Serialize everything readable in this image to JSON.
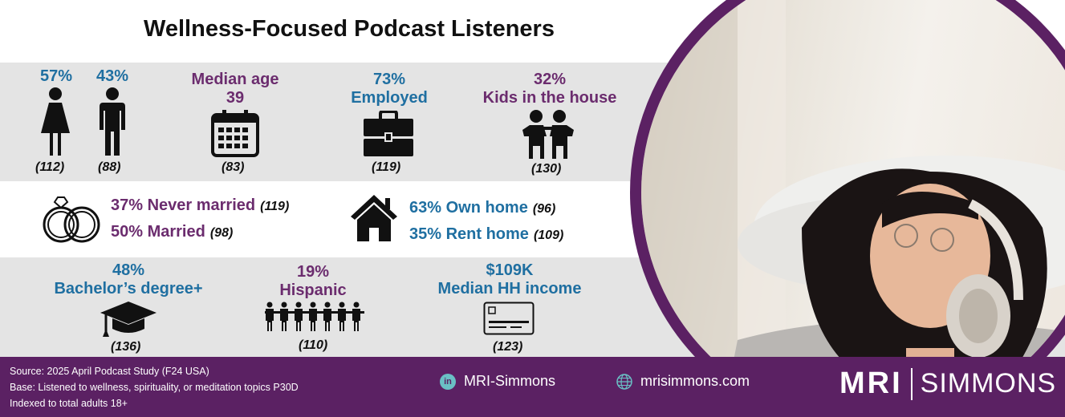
{
  "title": "Wellness-Focused Podcast Listeners",
  "row1": {
    "female": {
      "pct": "57%",
      "index": "(112)"
    },
    "male": {
      "pct": "43%",
      "index": "(88)"
    },
    "age": {
      "label": "Median age",
      "value": "39",
      "index": "(83)"
    },
    "employed": {
      "pct": "73%",
      "label": "Employed",
      "index": "(119)"
    },
    "kids": {
      "pct": "32%",
      "label": "Kids in the house",
      "index": "(130)"
    }
  },
  "row2": {
    "never_married": {
      "text": "37% Never married",
      "index": "(119)"
    },
    "married": {
      "text": "50% Married",
      "index": "(98)"
    },
    "own_home": {
      "text": "63% Own home",
      "index": "(96)"
    },
    "rent_home": {
      "text": "35% Rent home",
      "index": "(109)"
    }
  },
  "row3": {
    "bachelors": {
      "pct": "48%",
      "label": "Bachelor’s degree+",
      "index": "(136)"
    },
    "hispanic": {
      "pct": "19%",
      "label": "Hispanic",
      "index": "(110)"
    },
    "income": {
      "value": "$109K",
      "label": "Median HH income",
      "index": "(123)"
    }
  },
  "footer": {
    "source_lines": [
      "Source: 2025 April Podcast Study (F24 USA)",
      "Base: Listened to wellness, spirituality, or meditation topics P30D",
      "Indexed to total adults 18+"
    ],
    "linkedin": "MRI-Simmons",
    "website": "mrisimmons.com",
    "logo_left": "MRI",
    "logo_right": "SIMMONS"
  },
  "colors": {
    "blue": "#1f6fa1",
    "purple": "#6b2c6e",
    "footer": "#5b2163"
  }
}
